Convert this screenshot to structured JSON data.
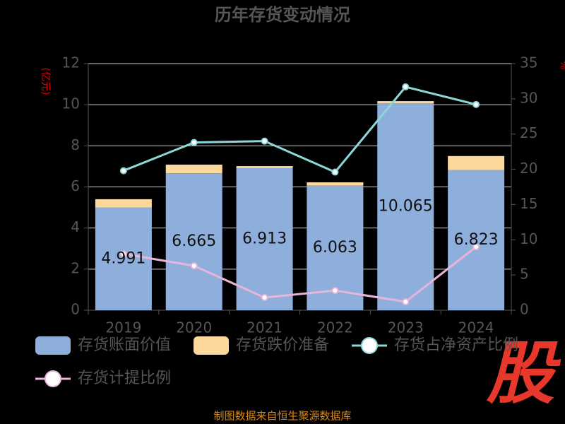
{
  "chart_data": {
    "type": "bar-line",
    "title": "历年存货变动情况",
    "y_label": "(亿元)",
    "y2_label": "%",
    "categories": [
      "2019",
      "2020",
      "2021",
      "2022",
      "2023",
      "2024"
    ],
    "series": [
      {
        "name": "存货账面价值",
        "kind": "bar",
        "color": "#8eaedc",
        "values": [
          4.991,
          6.665,
          6.913,
          6.063,
          10.065,
          6.823
        ]
      },
      {
        "name": "存货跌价准备",
        "kind": "bar",
        "color": "#fdd79b",
        "values": [
          0.41,
          0.42,
          0.1,
          0.16,
          0.11,
          0.68
        ]
      },
      {
        "name": "存货占净资产比例",
        "kind": "line",
        "axis": "y2",
        "color": "#8dd7d9",
        "values": [
          19.8,
          23.8,
          24.0,
          19.6,
          31.7,
          29.2
        ]
      },
      {
        "name": "存货计提比例",
        "kind": "line",
        "axis": "y2",
        "color": "#e8b4d8",
        "values": [
          8.0,
          6.3,
          1.8,
          2.8,
          1.2,
          9.0
        ]
      }
    ],
    "ylim": [
      0,
      12
    ],
    "yticks": [
      0,
      2,
      4,
      6,
      8,
      10,
      12
    ],
    "y2lim": [
      0,
      35
    ],
    "y2ticks": [
      0,
      5,
      10,
      15,
      20,
      25,
      30,
      35
    ],
    "grid": true,
    "watermark": "股",
    "source": "制图数据来自恒生聚源数据库"
  }
}
